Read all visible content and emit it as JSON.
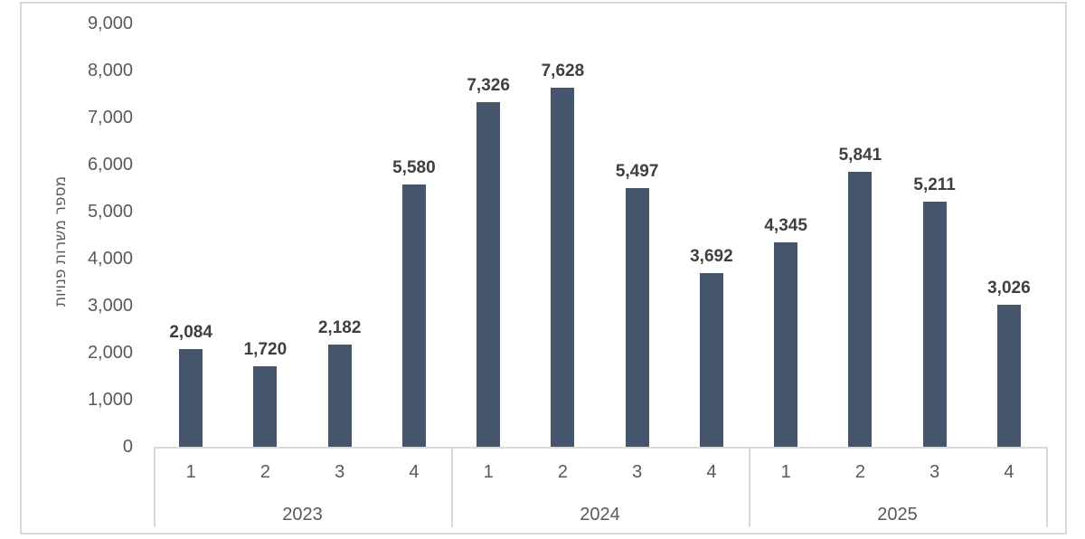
{
  "chart_data": {
    "type": "bar",
    "title": "",
    "xlabel": "",
    "ylabel": "מספר משרות פנויות",
    "ylim": [
      0,
      9000
    ],
    "ytick_step": 1000,
    "grid": false,
    "legend": false,
    "bar_color": "#45566C",
    "axis_line_color": "#D9D9D9",
    "axis_text_color": "#595959",
    "data_label_color": "#3F3F3F",
    "groups": [
      {
        "year": "2023",
        "quarters": [
          "1",
          "2",
          "3",
          "4"
        ],
        "values": [
          2084,
          1720,
          2182,
          5580
        ],
        "labels": [
          "2,084",
          "1,720",
          "2,182",
          "5,580"
        ]
      },
      {
        "year": "2024",
        "quarters": [
          "1",
          "2",
          "3",
          "4"
        ],
        "values": [
          7326,
          7628,
          5497,
          3692
        ],
        "labels": [
          "7,326",
          "7,628",
          "5,497",
          "3,692"
        ]
      },
      {
        "year": "2025",
        "quarters": [
          "1",
          "2",
          "3",
          "4"
        ],
        "values": [
          4345,
          5841,
          5211,
          3026
        ],
        "labels": [
          "4,345",
          "5,841",
          "5,211",
          "3,026"
        ]
      }
    ],
    "categories": [
      "1",
      "2",
      "3",
      "4",
      "1",
      "2",
      "3",
      "4",
      "1",
      "2",
      "3",
      "4"
    ],
    "values": [
      2084,
      1720,
      2182,
      5580,
      7326,
      7628,
      5497,
      3692,
      4345,
      5841,
      5211,
      3026
    ],
    "ytick_labels": [
      "0",
      "1,000",
      "2,000",
      "3,000",
      "4,000",
      "5,000",
      "6,000",
      "7,000",
      "8,000",
      "9,000"
    ]
  }
}
